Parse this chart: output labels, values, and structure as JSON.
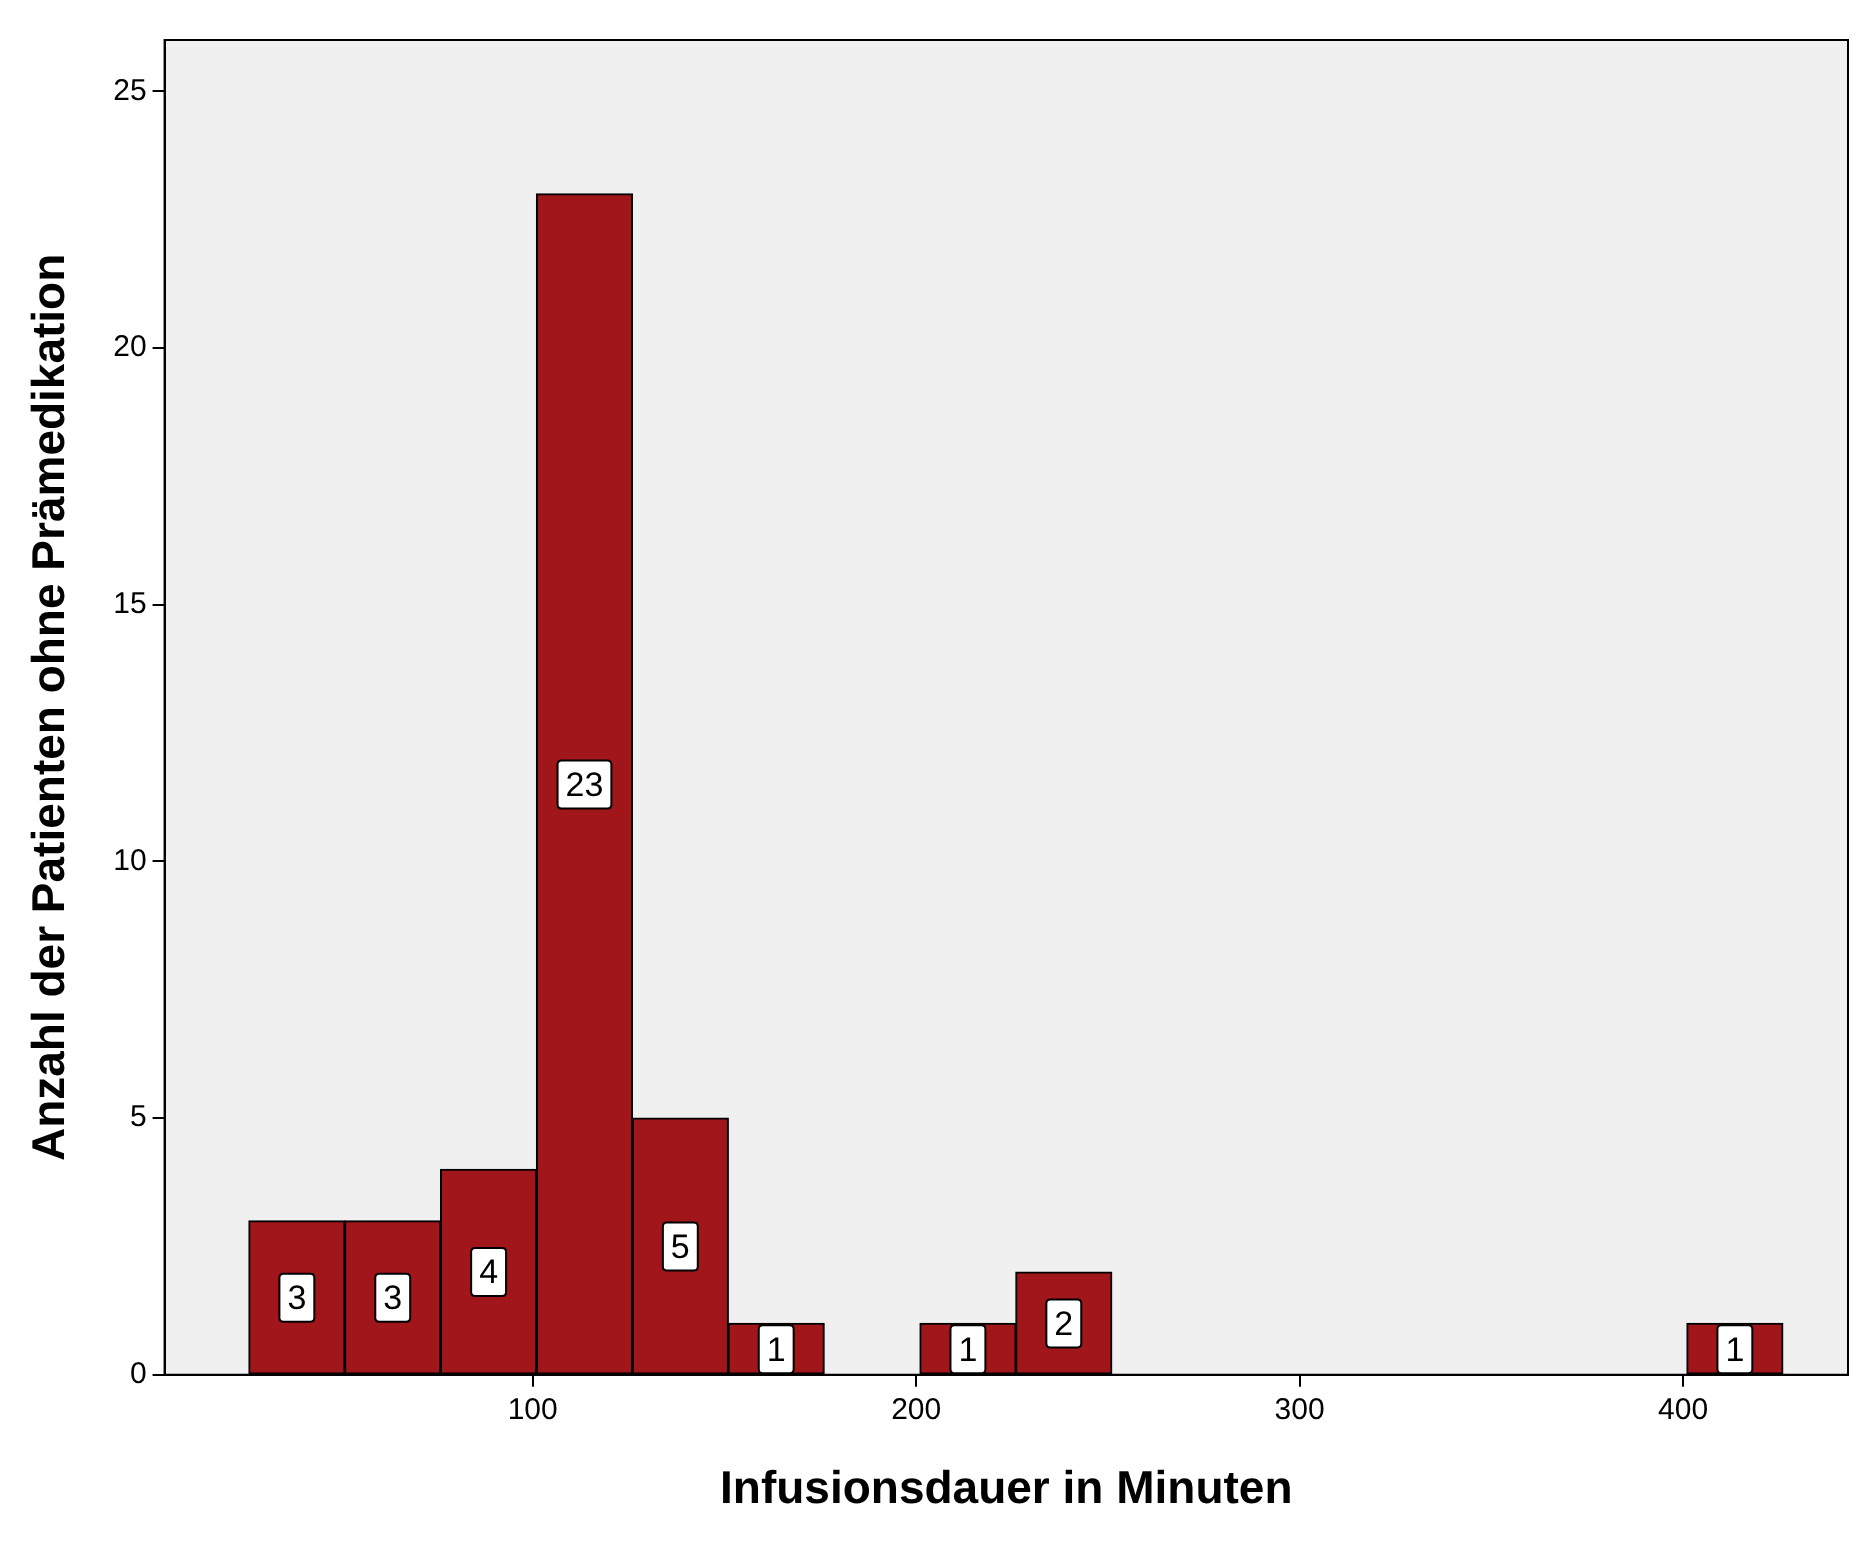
{
  "chart_data": {
    "type": "histogram",
    "xlabel": "Infusionsdauer in Minuten",
    "ylabel": "Anzahl der Patienten ohne Prämedikation",
    "bins": [
      26,
      51,
      76,
      101,
      126,
      151,
      176,
      201,
      226,
      251,
      276,
      301,
      326,
      351,
      376,
      401,
      426
    ],
    "values": [
      3,
      3,
      4,
      23,
      5,
      1,
      0,
      1,
      2,
      0,
      0,
      0,
      0,
      0,
      0,
      1
    ],
    "value_labels": [
      "3",
      "3",
      "4",
      "23",
      "5",
      "1",
      null,
      "1",
      "2",
      null,
      null,
      null,
      null,
      null,
      null,
      "1"
    ],
    "color": "#a0161a",
    "xlim": [
      4,
      443
    ],
    "xticks": [
      100,
      200,
      300,
      400
    ],
    "ylim": [
      0,
      26
    ],
    "yticks": [
      0,
      5,
      10,
      15,
      20,
      25
    ],
    "grid": false,
    "legend": false
  }
}
